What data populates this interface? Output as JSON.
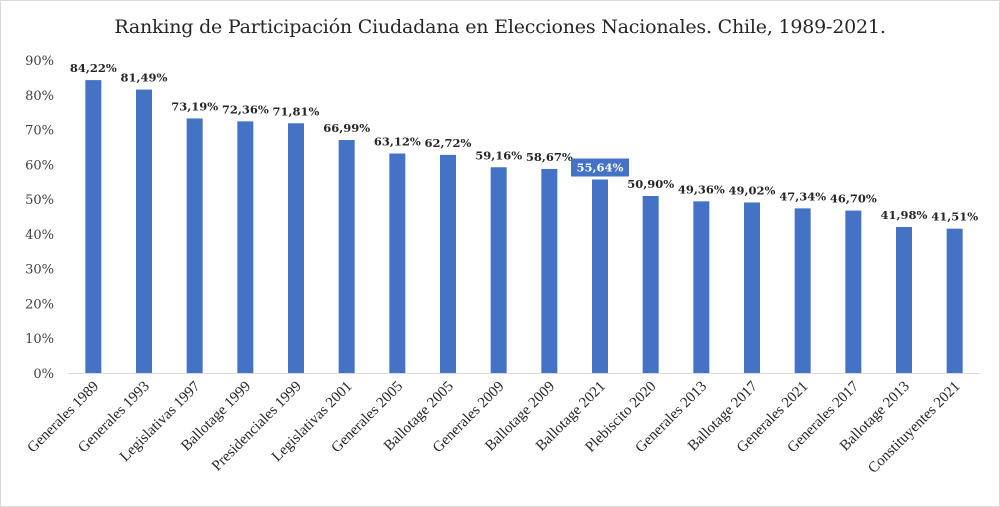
{
  "chart_data": {
    "type": "bar",
    "title": "Ranking de Participación Ciudadana en Elecciones Nacionales. Chile, 1989-2021.",
    "xlabel": "",
    "ylabel": "",
    "ylim": [
      0,
      90
    ],
    "yticks": [
      0,
      10,
      20,
      30,
      40,
      50,
      60,
      70,
      80,
      90
    ],
    "ytick_labels": [
      "0%",
      "10%",
      "20%",
      "30%",
      "40%",
      "50%",
      "60%",
      "70%",
      "80%",
      "90%"
    ],
    "grid": false,
    "legend": "none",
    "bar_color": "#4472C4",
    "categories": [
      "Generales 1989",
      "Generales 1993",
      "Legislativas 1997",
      "Ballotage 1999",
      "Presidenciales 1999",
      "Legislativas 2001",
      "Generales 2005",
      "Ballotage 2005",
      "Generales 2009",
      "Ballotage 2009",
      "Ballotage 2021",
      "Plebiscito 2020",
      "Generales 2013",
      "Ballotage 2017",
      "Generales 2021",
      "Generales 2017",
      "Ballotage 2013",
      "Constituyentes 2021"
    ],
    "values": [
      84.22,
      81.49,
      73.19,
      72.36,
      71.81,
      66.99,
      63.12,
      62.72,
      59.16,
      58.67,
      55.64,
      50.9,
      49.36,
      49.02,
      47.34,
      46.7,
      41.98,
      41.51
    ],
    "data_labels": [
      "84,22%",
      "81,49%",
      "73,19%",
      "72,36%",
      "71,81%",
      "66,99%",
      "63,12%",
      "62,72%",
      "59,16%",
      "58,67%",
      "55,64%",
      "50,90%",
      "49,36%",
      "49,02%",
      "47,34%",
      "46,70%",
      "41,98%",
      "41,51%"
    ],
    "highlighted_label_index": 10,
    "highlight_color": "#4472C4"
  }
}
